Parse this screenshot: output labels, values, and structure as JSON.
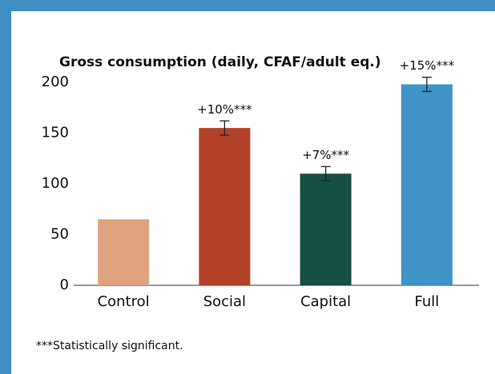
{
  "chart_data": {
    "type": "bar",
    "title": "Gross consumption (daily, CFAF/adult eq.)",
    "categories": [
      "Control",
      "Social",
      "Capital",
      "Full"
    ],
    "values": [
      65,
      155,
      110,
      198
    ],
    "errors": [
      null,
      7,
      7,
      7
    ],
    "annotations": [
      null,
      "+10%***",
      "+7%***",
      "+15%***"
    ],
    "colors": [
      "#dfa27e",
      "#b34128",
      "#154f45",
      "#3f93c6"
    ],
    "ylim": [
      0,
      200
    ],
    "yticks": [
      0,
      50,
      100,
      150,
      200
    ],
    "grid": false,
    "footnote": "***Statistically significant."
  }
}
